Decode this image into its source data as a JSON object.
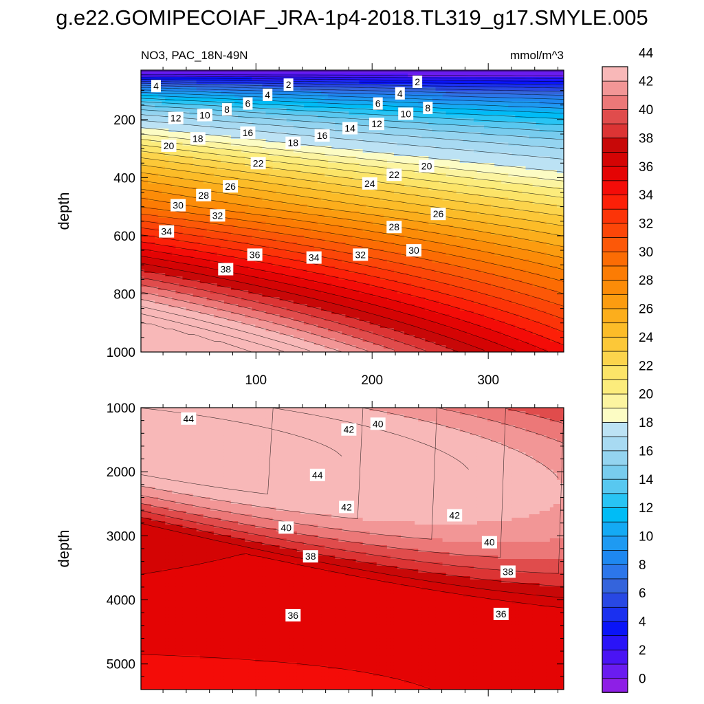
{
  "title": "g.e22.GOMIPECOIAF_JRA-1p4-2018.TL319_g17.SMYLE.005",
  "chart_data": [
    {
      "type": "heatmap",
      "panel": "upper",
      "left_label": "NO3, PAC_18N-49N",
      "right_label": "mmol/m^3",
      "ylabel": "depth",
      "xlabel": "",
      "x_range": [
        1,
        365
      ],
      "y_range": [
        30,
        1000
      ],
      "y_reversed": true,
      "x_ticks": [
        "100",
        "200",
        "300"
      ],
      "y_ticks": [
        "200",
        "400",
        "600",
        "800",
        "1000"
      ],
      "contour_interval": 1,
      "contour_labels": [
        {
          "text": "4",
          "x": 14,
          "y": 85
        },
        {
          "text": "2",
          "x": 128,
          "y": 80
        },
        {
          "text": "4",
          "x": 110,
          "y": 115
        },
        {
          "text": "6",
          "x": 93,
          "y": 145
        },
        {
          "text": "8",
          "x": 75,
          "y": 165
        },
        {
          "text": "10",
          "x": 56,
          "y": 185
        },
        {
          "text": "12",
          "x": 31,
          "y": 195
        },
        {
          "text": "18",
          "x": 50,
          "y": 265
        },
        {
          "text": "20",
          "x": 25,
          "y": 290
        },
        {
          "text": "16",
          "x": 93,
          "y": 245
        },
        {
          "text": "18",
          "x": 132,
          "y": 280
        },
        {
          "text": "16",
          "x": 157,
          "y": 255
        },
        {
          "text": "14",
          "x": 181,
          "y": 230
        },
        {
          "text": "12",
          "x": 204,
          "y": 215
        },
        {
          "text": "10",
          "x": 229,
          "y": 180
        },
        {
          "text": "8",
          "x": 248,
          "y": 160
        },
        {
          "text": "6",
          "x": 205,
          "y": 145
        },
        {
          "text": "4",
          "x": 224,
          "y": 110
        },
        {
          "text": "2",
          "x": 239,
          "y": 70
        },
        {
          "text": "22",
          "x": 102,
          "y": 350
        },
        {
          "text": "26",
          "x": 78,
          "y": 430
        },
        {
          "text": "28",
          "x": 55,
          "y": 460
        },
        {
          "text": "30",
          "x": 33,
          "y": 495
        },
        {
          "text": "32",
          "x": 67,
          "y": 530
        },
        {
          "text": "34",
          "x": 23,
          "y": 585
        },
        {
          "text": "22",
          "x": 219,
          "y": 390
        },
        {
          "text": "20",
          "x": 247,
          "y": 360
        },
        {
          "text": "24",
          "x": 198,
          "y": 420
        },
        {
          "text": "26",
          "x": 257,
          "y": 525
        },
        {
          "text": "28",
          "x": 219,
          "y": 570
        },
        {
          "text": "30",
          "x": 236,
          "y": 650
        },
        {
          "text": "32",
          "x": 190,
          "y": 665
        },
        {
          "text": "34",
          "x": 150,
          "y": 675
        },
        {
          "text": "36",
          "x": 99,
          "y": 665
        },
        {
          "text": "38",
          "x": 74,
          "y": 715
        }
      ]
    },
    {
      "type": "heatmap",
      "panel": "lower",
      "ylabel": "depth",
      "xlabel": "",
      "x_range": [
        1,
        365
      ],
      "y_range": [
        1000,
        5400
      ],
      "y_reversed": true,
      "y_ticks": [
        "1000",
        "2000",
        "3000",
        "4000",
        "5000"
      ],
      "contour_interval": 1,
      "contour_labels": [
        {
          "text": "44",
          "x": 42,
          "y": 1170
        },
        {
          "text": "42",
          "x": 180,
          "y": 1340
        },
        {
          "text": "40",
          "x": 205,
          "y": 1250
        },
        {
          "text": "44",
          "x": 153,
          "y": 2050
        },
        {
          "text": "42",
          "x": 178,
          "y": 2550
        },
        {
          "text": "42",
          "x": 271,
          "y": 2680
        },
        {
          "text": "40",
          "x": 126,
          "y": 2870
        },
        {
          "text": "40",
          "x": 301,
          "y": 3100
        },
        {
          "text": "38",
          "x": 147,
          "y": 3320
        },
        {
          "text": "38",
          "x": 317,
          "y": 3560
        },
        {
          "text": "36",
          "x": 132,
          "y": 4240
        },
        {
          "text": "36",
          "x": 311,
          "y": 4220
        }
      ]
    }
  ],
  "colorbar": {
    "labels": [
      "0",
      "2",
      "4",
      "6",
      "8",
      "10",
      "12",
      "14",
      "16",
      "18",
      "20",
      "22",
      "24",
      "26",
      "28",
      "30",
      "32",
      "34",
      "36",
      "38",
      "40",
      "42",
      "44"
    ],
    "colors": [
      "#8e1fe6",
      "#6a1cf0",
      "#4a14f4",
      "#2a14f8",
      "#0a14f8",
      "#1a30f0",
      "#2848e4",
      "#3464dc",
      "#2c76ea",
      "#1e88f0",
      "#1e9af2",
      "#14aaf4",
      "#00bcf6",
      "#28c4f4",
      "#58c8f0",
      "#78ccee",
      "#94d4f0",
      "#a8daf2",
      "#bce2f4",
      "#fcfcc4",
      "#fcf4a0",
      "#fcec7c",
      "#fce468",
      "#fcd44c",
      "#fcc838",
      "#fcbc28",
      "#fcae1c",
      "#fc9c10",
      "#fc8c08",
      "#fc7c04",
      "#fc6c04",
      "#fc5808",
      "#fc4608",
      "#fc3408",
      "#fc2008",
      "#f40c08",
      "#e40404",
      "#d40404",
      "#c80808",
      "#dc3434",
      "#e04c4c",
      "#ec7878",
      "#f29696",
      "#f8b8b8"
    ]
  }
}
